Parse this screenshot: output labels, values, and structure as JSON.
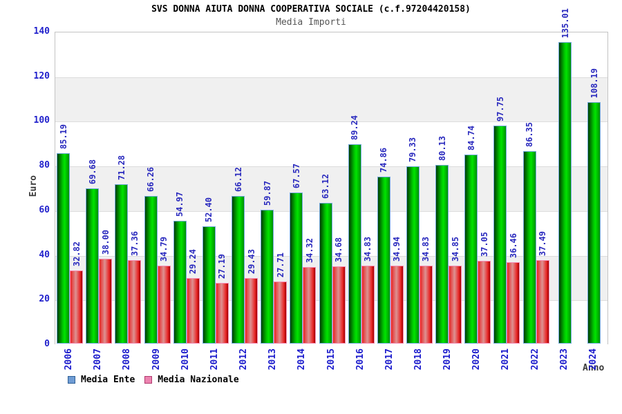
{
  "header": {
    "title": "SVS DONNA AIUTA DONNA COOPERATIVA SOCIALE (c.f.97204420158)",
    "subtitle": "Media Importi"
  },
  "chart_data": {
    "type": "bar",
    "title": "SVS DONNA AIUTA DONNA COOPERATIVA SOCIALE (c.f.97204420158)",
    "subtitle": "Media Importi",
    "xlabel": "Anno",
    "ylabel": "Euro",
    "ylim": [
      0,
      140
    ],
    "ytick_step": 20,
    "yticks": [
      0,
      20,
      40,
      60,
      80,
      100,
      120,
      140
    ],
    "grid": "alternating-bands",
    "legend_position": "bottom-left",
    "categories": [
      "2006",
      "2007",
      "2008",
      "2009",
      "2010",
      "2011",
      "2012",
      "2013",
      "2014",
      "2015",
      "2016",
      "2017",
      "2018",
      "2019",
      "2020",
      "2021",
      "2022",
      "2023",
      "2024"
    ],
    "series": [
      {
        "name": "Media Ente",
        "swatch_fill": "#6f9cd4",
        "swatch_border": "#2e5f96",
        "values": [
          85.19,
          69.68,
          71.28,
          66.26,
          54.97,
          52.4,
          66.12,
          59.87,
          67.57,
          63.12,
          89.24,
          74.86,
          79.33,
          80.13,
          84.74,
          97.75,
          86.35,
          135.01,
          108.19
        ]
      },
      {
        "name": "Media Nazionale",
        "swatch_fill": "#ec83b0",
        "swatch_border": "#b03a6e",
        "values": [
          32.82,
          38.0,
          37.36,
          34.79,
          29.24,
          27.19,
          29.43,
          27.71,
          34.32,
          34.68,
          34.83,
          34.94,
          34.83,
          34.85,
          37.05,
          36.46,
          37.49,
          null,
          null
        ]
      }
    ],
    "colors": {
      "band_gray": "#f0f0f0",
      "band_white": "#ffffff",
      "axis_text": "#2222cc",
      "value_text": "#2a2abe",
      "plot_border": "#c3c3c3"
    }
  }
}
